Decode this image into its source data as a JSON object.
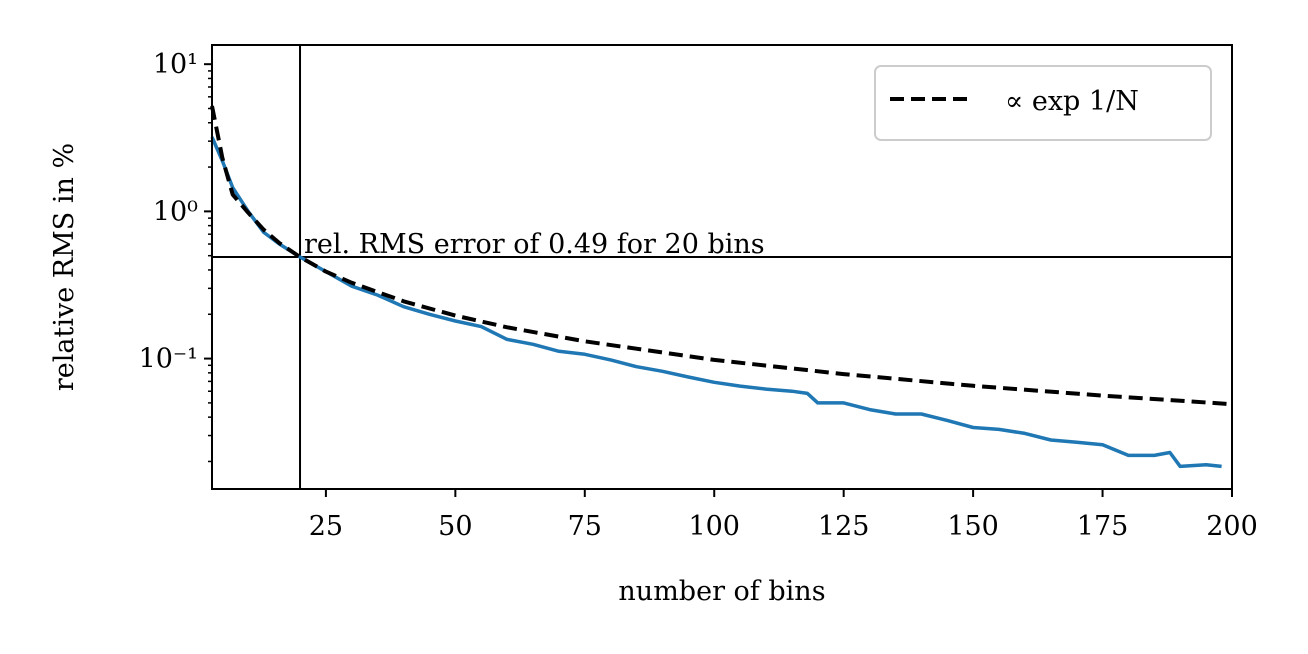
{
  "chart_data": {
    "type": "line",
    "xlabel": "number of bins",
    "ylabel": "relative RMS in %",
    "xlim": [
      3,
      200
    ],
    "ylim": [
      0.013,
      13.5
    ],
    "yscale": "log",
    "xticks": [
      25,
      50,
      75,
      100,
      125,
      150,
      175,
      200
    ],
    "yticks_major": [
      {
        "value": 0.1,
        "label": "10⁻¹"
      },
      {
        "value": 1,
        "label": "10⁰"
      },
      {
        "value": 10,
        "label": "10¹"
      }
    ],
    "grid": false,
    "legend": {
      "position": "top-right",
      "entries": [
        "∝ exp 1/N"
      ]
    },
    "reference_lines": {
      "vertical_x": 20,
      "horizontal_y": 0.49
    },
    "annotation": {
      "text": "rel. RMS error of 0.49 for 20 bins",
      "x": 20,
      "y": 0.49
    },
    "series": [
      {
        "style": "solid",
        "color": "#1f77b4",
        "x": [
          3,
          5,
          7,
          10,
          13,
          16,
          20,
          25,
          30,
          35,
          40,
          45,
          50,
          55,
          60,
          65,
          70,
          75,
          80,
          85,
          90,
          95,
          100,
          105,
          110,
          115,
          118,
          120,
          125,
          130,
          135,
          140,
          145,
          150,
          155,
          160,
          165,
          170,
          175,
          180,
          185,
          188,
          190,
          195,
          198
        ],
        "y": [
          3.2,
          2.2,
          1.45,
          1.0,
          0.72,
          0.6,
          0.49,
          0.39,
          0.31,
          0.27,
          0.225,
          0.2,
          0.18,
          0.165,
          0.135,
          0.125,
          0.112,
          0.107,
          0.098,
          0.088,
          0.082,
          0.075,
          0.069,
          0.065,
          0.062,
          0.06,
          0.058,
          0.05,
          0.05,
          0.045,
          0.042,
          0.042,
          0.038,
          0.034,
          0.033,
          0.031,
          0.028,
          0.027,
          0.026,
          0.022,
          0.022,
          0.023,
          0.0185,
          0.019,
          0.0185
        ],
        "label": ""
      },
      {
        "name": "∝ exp 1/N",
        "style": "dashed",
        "color": "#000000",
        "x": [
          3,
          5,
          7,
          10,
          13,
          16,
          20,
          25,
          30,
          40,
          50,
          60,
          75,
          100,
          125,
          150,
          175,
          200
        ],
        "y": [
          5.2,
          2.3,
          1.3,
          0.98,
          0.75,
          0.61,
          0.49,
          0.39,
          0.327,
          0.245,
          0.196,
          0.163,
          0.131,
          0.098,
          0.0784,
          0.0653,
          0.056,
          0.049
        ]
      }
    ]
  }
}
